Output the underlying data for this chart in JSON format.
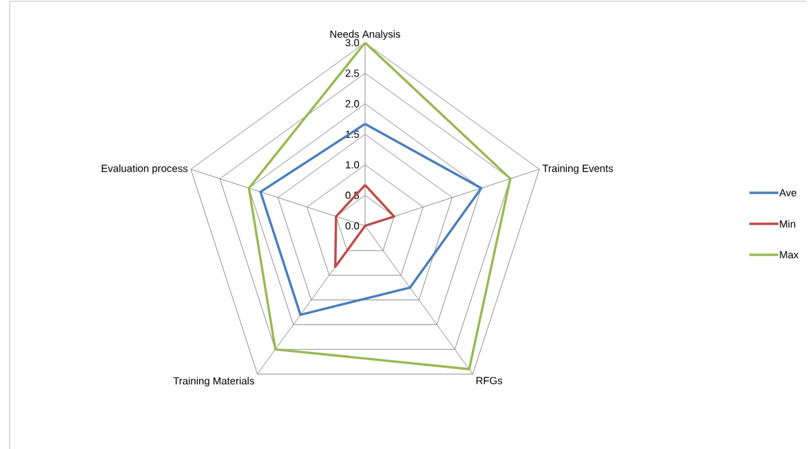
{
  "chart_data": {
    "type": "radar",
    "categories": [
      "Needs Analysis",
      "Training Events",
      "RFGs",
      "Training Materials",
      "Evaluation process"
    ],
    "series": [
      {
        "name": "Ave",
        "color": "#4a7ebb",
        "values": [
          1.67,
          2.0,
          1.25,
          1.8,
          1.8
        ]
      },
      {
        "name": "Min",
        "color": "#be4b48",
        "values": [
          0.67,
          0.5,
          0.0,
          0.83,
          0.5
        ]
      },
      {
        "name": "Max",
        "color": "#98b954",
        "values": [
          3.0,
          2.5,
          2.9,
          2.5,
          2.0
        ]
      }
    ],
    "ylim": [
      0,
      3.0
    ],
    "yticks": [
      {
        "value": 0,
        "label": "0.0"
      },
      {
        "value": 0.5,
        "label": "0.5"
      },
      {
        "value": 1.0,
        "label": "1.0"
      },
      {
        "value": 1.5,
        "label": "1.5"
      },
      {
        "value": 2.0,
        "label": "2.0"
      },
      {
        "value": 2.5,
        "label": "2.5"
      },
      {
        "value": 3.0,
        "label": "3.0"
      }
    ],
    "grid": true,
    "legend": "right",
    "marker": "none",
    "line_style": "solid"
  }
}
